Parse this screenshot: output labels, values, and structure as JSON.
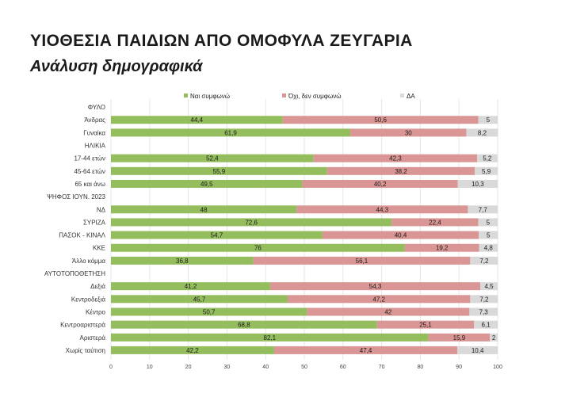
{
  "title": "ΥΙΟΘΕΣΙΑ ΠΑΙΔΙΩΝ ΑΠΟ ΟΜΟΦΥΛΑ ΖΕΥΓΑΡΙΑ",
  "subtitle": "Ανάλυση δημογραφικά",
  "colors": {
    "agree": "#94bd5e",
    "disagree": "#d99694",
    "dk": "#d9d9d9"
  },
  "chart_data": {
    "type": "bar",
    "orientation": "horizontal",
    "stacked": true,
    "xlim": [
      0,
      100
    ],
    "xticks": [
      0,
      10,
      20,
      30,
      40,
      50,
      60,
      70,
      80,
      90,
      100
    ],
    "grid": true,
    "legend_position": "top",
    "series": [
      {
        "key": "agree",
        "name": "Ναι συμφωνώ"
      },
      {
        "key": "disagree",
        "name": "Όχι, δεν συμφωνώ"
      },
      {
        "key": "dk",
        "name": "ΔΑ"
      }
    ],
    "rows": [
      {
        "label": "ΦΥΛΟ",
        "header": true
      },
      {
        "label": "Άνδρας",
        "agree": 44.4,
        "disagree": 50.6,
        "dk": 5,
        "labels": [
          "44,4",
          "50,6",
          "5"
        ]
      },
      {
        "label": "Γυναίκα",
        "agree": 61.9,
        "disagree": 30,
        "dk": 8.2,
        "labels": [
          "61,9",
          "30",
          "8,2"
        ]
      },
      {
        "label": "ΗΛΙΚΙΑ",
        "header": true
      },
      {
        "label": "17-44 ετών",
        "agree": 52.4,
        "disagree": 42.3,
        "dk": 5.2,
        "labels": [
          "52,4",
          "42,3",
          "5,2"
        ]
      },
      {
        "label": "45-64 ετών",
        "agree": 55.9,
        "disagree": 38.2,
        "dk": 5.9,
        "labels": [
          "55,9",
          "38,2",
          "5,9"
        ]
      },
      {
        "label": "65 και άνω",
        "agree": 49.5,
        "disagree": 40.2,
        "dk": 10.3,
        "labels": [
          "49,5",
          "40,2",
          "10,3"
        ]
      },
      {
        "label": "ΨΗΦΟΣ ΙΟΥΝ. 2023",
        "header": true
      },
      {
        "label": "ΝΔ",
        "agree": 48,
        "disagree": 44.3,
        "dk": 7.7,
        "labels": [
          "48",
          "44,3",
          "7,7"
        ]
      },
      {
        "label": "ΣΥΡΙΖΑ",
        "agree": 72.6,
        "disagree": 22.4,
        "dk": 5,
        "labels": [
          "72,6",
          "22,4",
          "5"
        ]
      },
      {
        "label": "ΠΑΣΟΚ - ΚΙΝΑΛ",
        "agree": 54.7,
        "disagree": 40.4,
        "dk": 5,
        "labels": [
          "54,7",
          "40,4",
          "5"
        ]
      },
      {
        "label": "ΚΚΕ",
        "agree": 76,
        "disagree": 19.2,
        "dk": 4.8,
        "labels": [
          "76",
          "19,2",
          "4,8"
        ]
      },
      {
        "label": "Άλλο κόμμα",
        "agree": 36.8,
        "disagree": 56.1,
        "dk": 7.2,
        "labels": [
          "36,8",
          "56,1",
          "7,2"
        ]
      },
      {
        "label": "ΑΥΤΟΤΟΠΟΘΕΤΗΣΗ",
        "header": true
      },
      {
        "label": "Δεξιά",
        "agree": 41.2,
        "disagree": 54.3,
        "dk": 4.5,
        "labels": [
          "41,2",
          "54,3",
          "4,5"
        ]
      },
      {
        "label": "Κεντροδεξιά",
        "agree": 45.7,
        "disagree": 47.2,
        "dk": 7.2,
        "labels": [
          "45,7",
          "47,2",
          "7,2"
        ]
      },
      {
        "label": "Κέντρο",
        "agree": 50.7,
        "disagree": 42,
        "dk": 7.3,
        "labels": [
          "50,7",
          "42",
          "7,3"
        ]
      },
      {
        "label": "Κεντροαριστερά",
        "agree": 68.8,
        "disagree": 25.1,
        "dk": 6.1,
        "labels": [
          "68,8",
          "25,1",
          "6,1"
        ]
      },
      {
        "label": "Αριστερά",
        "agree": 82.1,
        "disagree": 15.9,
        "dk": 2,
        "labels": [
          "82,1",
          "15,9",
          "2"
        ]
      },
      {
        "label": "Χωρίς ταύτιση",
        "agree": 42.2,
        "disagree": 47.4,
        "dk": 10.4,
        "labels": [
          "42,2",
          "47,4",
          "10,4"
        ]
      }
    ]
  }
}
